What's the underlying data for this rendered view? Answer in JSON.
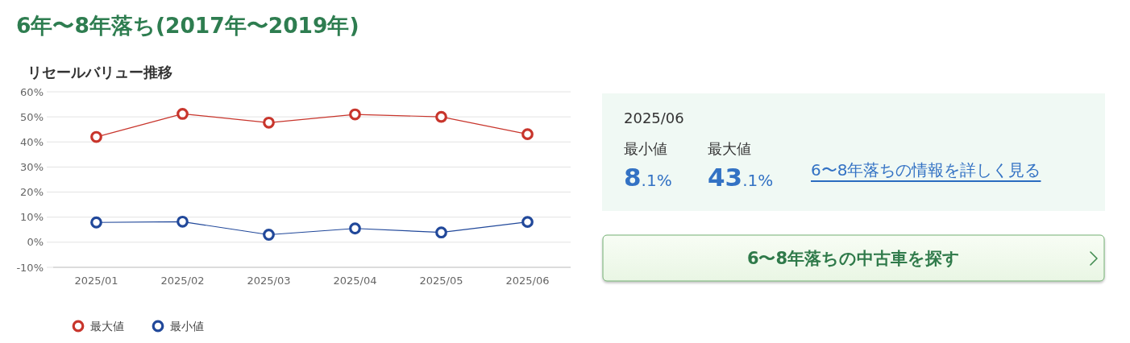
{
  "chart_data": [
    {
      "type": "line",
      "title": "6年〜8年落ち(2017年〜2019年)",
      "subtitle": "リセールバリュー推移",
      "categories": [
        "2025/01",
        "2025/02",
        "2025/03",
        "2025/04",
        "2025/05",
        "2025/06"
      ],
      "series": [
        {
          "name": "最大値",
          "color": "#c8352c",
          "values": [
            42,
            51.2,
            47.7,
            51.0,
            50.0,
            43.1
          ]
        },
        {
          "name": "最小値",
          "color": "#21489a",
          "values": [
            7.9,
            8.2,
            3.0,
            5.5,
            3.9,
            8.1
          ]
        }
      ],
      "ylim": [
        -10,
        60
      ],
      "yticks": [
        {
          "value": -10,
          "label": "-10%"
        },
        {
          "value": 0,
          "label": "0%"
        },
        {
          "value": 10,
          "label": "10%"
        },
        {
          "value": 20,
          "label": "20%"
        },
        {
          "value": 30,
          "label": "30%"
        },
        {
          "value": 40,
          "label": "40%"
        },
        {
          "value": 50,
          "label": "50%"
        },
        {
          "value": 60,
          "label": "60%"
        }
      ],
      "grid": "y",
      "legend": "bottom left",
      "marker": "circle",
      "line_style": "solid"
    },
    {
      "type": "other",
      "annotations": [
        "2025/06",
        "最小値",
        "8.1%",
        "最大値",
        "43.1%",
        "6〜8年落ちの情報を詳しく見る",
        "6〜8年落ちの中古車を探す"
      ]
    }
  ]
}
